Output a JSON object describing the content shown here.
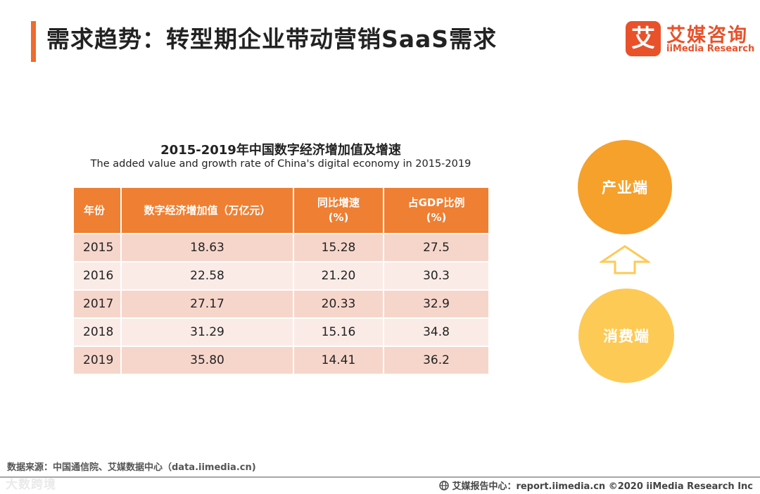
{
  "header": {
    "title": "需求趋势：转型期企业带动营销SaaS需求",
    "logo_mark": "艾",
    "logo_cn": "艾媒咨询",
    "logo_en": "iiMedia Research"
  },
  "table": {
    "title": "2015-2019年中国数字经济增加值及增速",
    "subtitle": "The added value and growth rate of China's digital economy in 2015-2019",
    "headers": [
      "年份",
      "数字经济增加值（万亿元）",
      "同比增速",
      "(%)",
      "占GDP比例",
      "(%)"
    ],
    "rows": [
      {
        "year": "2015",
        "value": "18.63",
        "growth": "15.28",
        "gdp_share": "27.5"
      },
      {
        "year": "2016",
        "value": "22.58",
        "growth": "21.20",
        "gdp_share": "30.3"
      },
      {
        "year": "2017",
        "value": "27.17",
        "growth": "20.33",
        "gdp_share": "32.9"
      },
      {
        "year": "2018",
        "value": "31.29",
        "growth": "15.16",
        "gdp_share": "34.8"
      },
      {
        "year": "2019",
        "value": "35.80",
        "growth": "14.41",
        "gdp_share": "36.2"
      }
    ]
  },
  "diagram": {
    "top_label": "产业端",
    "bottom_label": "消费端",
    "colors": {
      "top": "#f6a12b",
      "bottom": "#fdca55",
      "arrow": "#fdca55"
    }
  },
  "footer": {
    "source": "数据来源：中国通信院、艾媒数据中心（data.iimedia.cn)",
    "watermark": "大数跨境",
    "right": "艾媒报告中心：report.iimedia.cn   ©2020  iiMedia Research  Inc"
  },
  "colors": {
    "accent": "#ef6b2e",
    "table_header": "#ef7f32",
    "row_odd": "#f6d6cb",
    "row_even": "#fbebe6"
  }
}
